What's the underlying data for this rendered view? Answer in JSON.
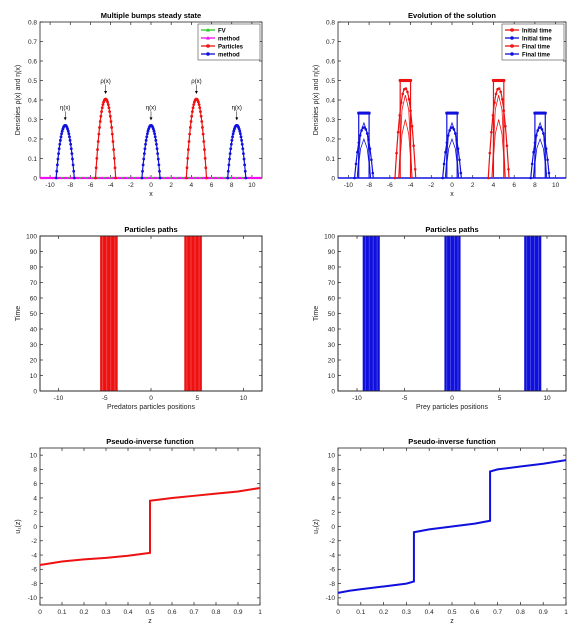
{
  "colors": {
    "red": "#ee1111",
    "blue": "#1010dd",
    "green": "#22cc22",
    "magenta": "#ee11ee",
    "axis": "#222222"
  },
  "chart_data": [
    {
      "id": "p1",
      "type": "line",
      "title": "Multiple bumps steady state",
      "xlabel": "x",
      "ylabel": "Densities ρ(x) and η(x)",
      "xlim": [
        -11,
        11
      ],
      "ylim": [
        0,
        0.8
      ],
      "xticks": [
        -10,
        -8,
        -6,
        -4,
        -2,
        0,
        2,
        4,
        6,
        8,
        10
      ],
      "yticks": [
        0,
        0.1,
        0.2,
        0.3,
        0.4,
        0.5,
        0.6,
        0.7,
        0.8
      ],
      "legend": {
        "position": "top-right",
        "entries": [
          "FV",
          "method",
          "Particles",
          "method"
        ]
      },
      "bumps": [
        {
          "center": -8.5,
          "halfwidth": 0.9,
          "height": 0.27,
          "color": "blue",
          "label": "η(x)"
        },
        {
          "center": -4.5,
          "halfwidth": 1.0,
          "height": 0.405,
          "color": "red",
          "label": "ρ(x)"
        },
        {
          "center": 0,
          "halfwidth": 0.9,
          "height": 0.27,
          "color": "blue",
          "label": "η(x)"
        },
        {
          "center": 4.5,
          "halfwidth": 1.0,
          "height": 0.405,
          "color": "red",
          "label": "ρ(x)"
        },
        {
          "center": 8.5,
          "halfwidth": 0.9,
          "height": 0.27,
          "color": "blue",
          "label": "η(x)"
        }
      ]
    },
    {
      "id": "p2",
      "type": "line",
      "title": "Evolution of the solution",
      "xlabel": "x",
      "ylabel": "Densities ρ(x) and η(x)",
      "xlim": [
        -11,
        11
      ],
      "ylim": [
        0,
        0.8
      ],
      "xticks": [
        -10,
        -8,
        -6,
        -4,
        -2,
        0,
        2,
        4,
        6,
        8,
        10
      ],
      "yticks": [
        0,
        0.1,
        0.2,
        0.3,
        0.4,
        0.5,
        0.6,
        0.7,
        0.8
      ],
      "legend": {
        "position": "top-right",
        "entries": [
          "Initial time",
          "Initial time",
          "Final time",
          "Final time"
        ]
      },
      "initial_plateaus": [
        {
          "from": -9.0,
          "to": -8.0,
          "height": 0.333,
          "color": "blue"
        },
        {
          "from": -5.0,
          "to": -4.0,
          "height": 0.5,
          "color": "red"
        },
        {
          "from": -0.5,
          "to": 0.5,
          "height": 0.333,
          "color": "blue"
        },
        {
          "from": 4.0,
          "to": 5.0,
          "height": 0.5,
          "color": "red"
        },
        {
          "from": 8.0,
          "to": 9.0,
          "height": 0.333,
          "color": "blue"
        }
      ],
      "final_bumps": [
        {
          "center": -8.5,
          "halfwidth": 0.9,
          "height": 0.26,
          "color": "blue"
        },
        {
          "center": -4.5,
          "halfwidth": 1.0,
          "height": 0.46,
          "color": "red"
        },
        {
          "center": 0,
          "halfwidth": 0.9,
          "height": 0.26,
          "color": "blue"
        },
        {
          "center": 4.5,
          "halfwidth": 1.0,
          "height": 0.46,
          "color": "red"
        },
        {
          "center": 8.5,
          "halfwidth": 0.9,
          "height": 0.26,
          "color": "blue"
        }
      ]
    },
    {
      "id": "p3",
      "type": "line",
      "title": "Particles paths",
      "xlabel": "Predators particles positions",
      "ylabel": "Time",
      "xlim": [
        -12,
        12
      ],
      "ylim": [
        0,
        100
      ],
      "xticks": [
        -10,
        -5,
        0,
        5,
        10
      ],
      "yticks": [
        0,
        10,
        20,
        30,
        40,
        50,
        60,
        70,
        80,
        90,
        100
      ],
      "bands": [
        {
          "from": -5.5,
          "to": -3.6,
          "color": "red"
        },
        {
          "from": 3.6,
          "to": 5.5,
          "color": "red"
        }
      ]
    },
    {
      "id": "p4",
      "type": "line",
      "title": "Particles paths",
      "xlabel": "Prey particles positions",
      "ylabel": "Time",
      "xlim": [
        -12,
        12
      ],
      "ylim": [
        0,
        100
      ],
      "xticks": [
        -10,
        -5,
        0,
        5,
        10
      ],
      "yticks": [
        0,
        10,
        20,
        30,
        40,
        50,
        60,
        70,
        80,
        90,
        100
      ],
      "bands": [
        {
          "from": -9.4,
          "to": -7.6,
          "color": "blue"
        },
        {
          "from": -0.8,
          "to": 0.9,
          "color": "blue"
        },
        {
          "from": 7.6,
          "to": 9.4,
          "color": "blue"
        }
      ]
    },
    {
      "id": "p5",
      "type": "line",
      "title": "Pseudo-inverse function",
      "xlabel": "z",
      "ylabel": "u₁(z)",
      "xlim": [
        0,
        1
      ],
      "ylim": [
        -11,
        11
      ],
      "xticks": [
        0,
        0.1,
        0.2,
        0.3,
        0.4,
        0.5,
        0.6,
        0.7,
        0.8,
        0.9,
        1
      ],
      "yticks": [
        -10,
        -8,
        -6,
        -4,
        -2,
        0,
        2,
        4,
        6,
        8,
        10
      ],
      "series": [
        {
          "color": "red",
          "x": [
            0,
            0.1,
            0.2,
            0.3,
            0.4,
            0.5,
            0.5,
            0.6,
            0.7,
            0.8,
            0.9,
            1.0
          ],
          "y": [
            -5.4,
            -4.9,
            -4.6,
            -4.4,
            -4.1,
            -3.7,
            3.6,
            4.0,
            4.3,
            4.6,
            4.9,
            5.4
          ]
        }
      ]
    },
    {
      "id": "p6",
      "type": "line",
      "title": "Pseudo-inverse function",
      "xlabel": "z",
      "ylabel": "u₂(z)",
      "xlim": [
        0,
        1
      ],
      "ylim": [
        -11,
        11
      ],
      "xticks": [
        0,
        0.1,
        0.2,
        0.3,
        0.4,
        0.5,
        0.6,
        0.7,
        0.8,
        0.9,
        1
      ],
      "yticks": [
        -10,
        -8,
        -6,
        -4,
        -2,
        0,
        2,
        4,
        6,
        8,
        10
      ],
      "series": [
        {
          "color": "blue",
          "x": [
            0,
            0.05,
            0.1,
            0.2,
            0.3,
            0.333,
            0.333,
            0.4,
            0.5,
            0.6,
            0.667,
            0.667,
            0.7,
            0.8,
            0.9,
            1.0
          ],
          "y": [
            -9.3,
            -9.0,
            -8.8,
            -8.4,
            -8.0,
            -7.7,
            -0.8,
            -0.4,
            0.0,
            0.4,
            0.8,
            7.7,
            8.0,
            8.4,
            8.8,
            9.3
          ]
        }
      ]
    }
  ]
}
